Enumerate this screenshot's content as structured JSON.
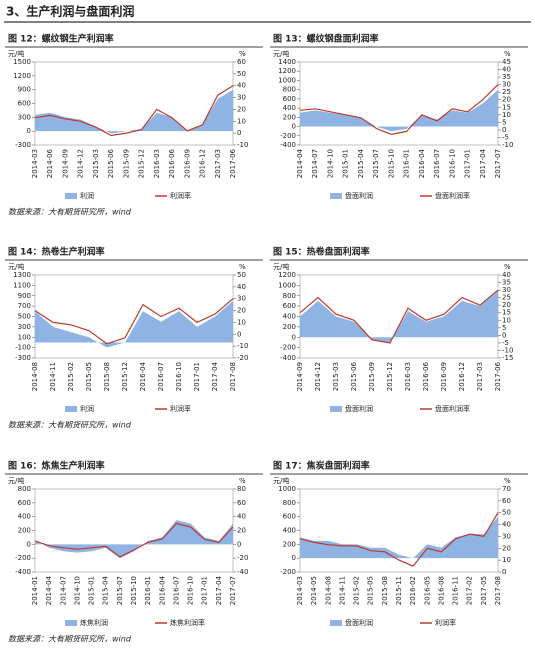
{
  "title": "3、生产利润与盘面利润",
  "source_notes": [
    "数据来源：大有期货研究所，wind",
    "数据来源：大有期货研究所，wind",
    "数据来源：大有期货研究所，wind"
  ],
  "chart_data": [
    {
      "type": "combo",
      "title": "图 12：螺纹钢生产利润率",
      "y_label": "元/吨",
      "y2_label": "%",
      "categories": [
        "2014-03",
        "2014-06",
        "2014-09",
        "2014-12",
        "2015-03",
        "2015-06",
        "2015-09",
        "2015-12",
        "2016-03",
        "2016-06",
        "2016-09",
        "2016-12",
        "2017-03",
        "2017-06"
      ],
      "series": [
        {
          "name": "利润",
          "kind": "area",
          "color": "#8fb4e3",
          "values": [
            350,
            400,
            300,
            250,
            100,
            -50,
            0,
            50,
            400,
            300,
            0,
            150,
            700,
            900
          ]
        },
        {
          "name": "利润率",
          "kind": "line",
          "axis": "y2",
          "color": "#c0392b",
          "values": [
            13,
            15,
            12,
            10,
            5,
            -2,
            0,
            3,
            20,
            13,
            2,
            7,
            32,
            40
          ]
        }
      ],
      "ylim": [
        -300,
        1500
      ],
      "yticks": [
        -300,
        0,
        300,
        600,
        900,
        1200,
        1500
      ],
      "y2lim": [
        -10,
        60
      ],
      "y2ticks": [
        -10,
        0,
        10,
        20,
        30,
        40,
        50,
        60
      ]
    },
    {
      "type": "combo",
      "title": "图 13：螺纹钢盘面利润率",
      "y_label": "元/吨",
      "y2_label": "%",
      "categories": [
        "2014-04",
        "2014-07",
        "2014-10",
        "2015-01",
        "2015-04",
        "2015-07",
        "2015-10",
        "2016-01",
        "2016-04",
        "2016-07",
        "2016-10",
        "2017-01",
        "2017-04",
        "2017-07"
      ],
      "series": [
        {
          "name": "盘面利润",
          "kind": "area",
          "color": "#8fb4e3",
          "values": [
            300,
            350,
            300,
            250,
            200,
            0,
            -100,
            -50,
            250,
            150,
            350,
            300,
            500,
            800
          ]
        },
        {
          "name": "盘面利润率",
          "kind": "line",
          "axis": "y2",
          "color": "#c0392b",
          "values": [
            13,
            14,
            12,
            10,
            8,
            1,
            -3,
            -1,
            10,
            6,
            14,
            12,
            20,
            30
          ]
        }
      ],
      "ylim": [
        -400,
        1400
      ],
      "yticks": [
        -400,
        -200,
        0,
        200,
        400,
        600,
        800,
        1000,
        1200,
        1400
      ],
      "y2lim": [
        -10,
        45
      ],
      "y2ticks": [
        -10,
        -5,
        0,
        5,
        10,
        15,
        20,
        25,
        30,
        35,
        40,
        45
      ]
    },
    {
      "type": "combo",
      "title": "图 14：热卷生产利润率",
      "y_label": "元/吨",
      "y2_label": "%",
      "categories": [
        "2014-08",
        "2014-11",
        "2015-02",
        "2015-05",
        "2015-08",
        "2015-12",
        "2016-04",
        "2016-07",
        "2016-10",
        "2017-01",
        "2017-04",
        "2017-08"
      ],
      "series": [
        {
          "name": "利润",
          "kind": "area",
          "color": "#8fb4e3",
          "values": [
            600,
            300,
            200,
            100,
            -100,
            0,
            600,
            400,
            600,
            300,
            500,
            800
          ]
        },
        {
          "name": "利润率",
          "kind": "line",
          "axis": "y2",
          "color": "#c0392b",
          "values": [
            20,
            10,
            8,
            3,
            -8,
            -3,
            25,
            15,
            22,
            10,
            17,
            30
          ]
        }
      ],
      "ylim": [
        -300,
        1300
      ],
      "yticks": [
        -300,
        -100,
        100,
        300,
        500,
        700,
        900,
        1100,
        1300
      ],
      "y2lim": [
        -20,
        50
      ],
      "y2ticks": [
        -20,
        -10,
        0,
        10,
        20,
        30,
        40,
        50
      ]
    },
    {
      "type": "combo",
      "title": "图 15：热卷盘面利润率",
      "y_label": "元/吨",
      "y2_label": "%",
      "categories": [
        "2014-09",
        "2014-12",
        "2015-03",
        "2015-06",
        "2015-09",
        "2015-12",
        "2016-03",
        "2016-06",
        "2016-09",
        "2016-12",
        "2017-03",
        "2017-06"
      ],
      "series": [
        {
          "name": "盘面利润",
          "kind": "area",
          "color": "#8fb4e3",
          "values": [
            400,
            700,
            400,
            300,
            -50,
            -100,
            500,
            300,
            400,
            700,
            600,
            900
          ]
        },
        {
          "name": "盘面利润率",
          "kind": "line",
          "axis": "y2",
          "color": "#c0392b",
          "values": [
            15,
            25,
            14,
            10,
            -3,
            -5,
            18,
            10,
            14,
            25,
            20,
            30
          ]
        }
      ],
      "ylim": [
        -400,
        1200
      ],
      "yticks": [
        -400,
        -200,
        0,
        200,
        400,
        600,
        800,
        1000,
        1200
      ],
      "y2lim": [
        -15,
        40
      ],
      "y2ticks": [
        -15,
        -10,
        -5,
        0,
        5,
        10,
        15,
        20,
        25,
        30,
        35,
        40
      ]
    },
    {
      "type": "combo",
      "title": "图 16：炼焦生产利润率",
      "y_label": "元/吨",
      "y2_label": "%",
      "categories": [
        "2014-01",
        "2014-04",
        "2014-07",
        "2014-10",
        "2015-01",
        "2015-04",
        "2015-07",
        "2015-10",
        "2016-01",
        "2016-04",
        "2016-07",
        "2016-10",
        "2017-01",
        "2017-04",
        "2017-07"
      ],
      "series": [
        {
          "name": "炼焦利润",
          "kind": "area",
          "color": "#8fb4e3",
          "values": [
            50,
            -50,
            -100,
            -120,
            -100,
            -50,
            -200,
            -100,
            50,
            100,
            350,
            300,
            100,
            50,
            300
          ]
        },
        {
          "name": "炼焦利润率",
          "kind": "line",
          "axis": "y2",
          "color": "#c0392b",
          "values": [
            5,
            -2,
            -5,
            -7,
            -5,
            -3,
            -18,
            -8,
            3,
            8,
            30,
            25,
            7,
            3,
            25
          ]
        }
      ],
      "ylim": [
        -400,
        800
      ],
      "yticks": [
        -400,
        -200,
        0,
        200,
        400,
        600,
        800
      ],
      "y2lim": [
        -40,
        80
      ],
      "y2ticks": [
        -40,
        -20,
        0,
        20,
        40,
        60,
        80
      ]
    },
    {
      "type": "combo",
      "title": "图 17：焦炭盘面利润率",
      "y_label": "元/吨",
      "y2_label": "%",
      "categories": [
        "2014-03",
        "2014-05",
        "2014-08",
        "2014-11",
        "2015-02",
        "2015-05",
        "2015-08",
        "2015-11",
        "2016-02",
        "2016-05",
        "2016-08",
        "2016-11",
        "2017-02",
        "2017-05",
        "2017-08"
      ],
      "series": [
        {
          "name": "盘面利润",
          "kind": "area",
          "color": "#8fb4e3",
          "values": [
            300,
            250,
            250,
            200,
            200,
            150,
            150,
            50,
            0,
            200,
            150,
            300,
            350,
            350,
            600
          ]
        },
        {
          "name": "利润率",
          "kind": "line",
          "axis": "y2",
          "color": "#c0392b",
          "values": [
            28,
            25,
            23,
            22,
            22,
            18,
            17,
            10,
            5,
            20,
            17,
            28,
            32,
            30,
            50
          ]
        }
      ],
      "ylim": [
        -200,
        1000
      ],
      "yticks": [
        -200,
        0,
        200,
        400,
        600,
        800,
        1000
      ],
      "y2lim": [
        0,
        70
      ],
      "y2ticks": [
        0,
        10,
        20,
        30,
        40,
        50,
        60,
        70
      ]
    }
  ]
}
